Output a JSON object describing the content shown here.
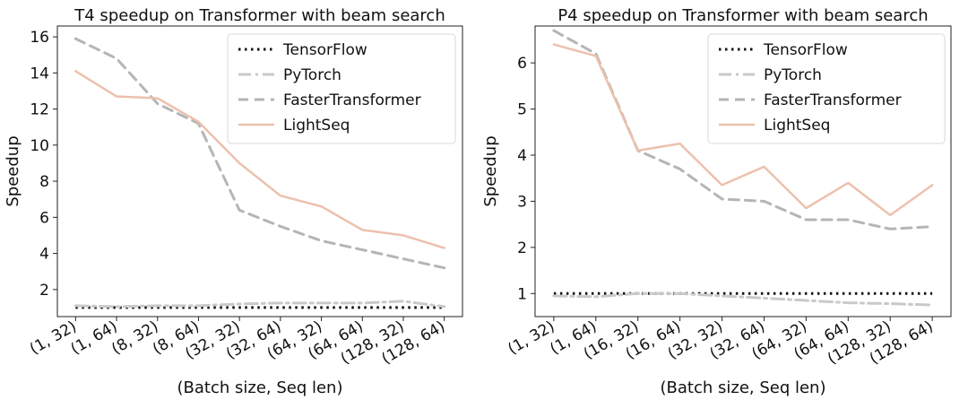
{
  "chart_data": [
    {
      "type": "line",
      "title": "T4 speedup on Transformer with beam search",
      "xlabel": "(Batch size, Seq len)",
      "ylabel": "Speedup",
      "categories": [
        "(1, 32)",
        "(1, 64)",
        "(8, 32)",
        "(8, 64)",
        "(32, 32)",
        "(32, 64)",
        "(64, 32)",
        "(64, 64)",
        "(128, 32)",
        "(128, 64)"
      ],
      "yticks": [
        "2",
        "4",
        "6",
        "8",
        "10",
        "12",
        "14",
        "16"
      ],
      "ylim": [
        0.5,
        16.6
      ],
      "legend_position": "top-right",
      "series": [
        {
          "name": "TensorFlow",
          "style": "dotted",
          "color": "#111111",
          "values": [
            1.0,
            1.0,
            1.0,
            1.0,
            1.0,
            1.0,
            1.0,
            1.0,
            1.0,
            1.0
          ]
        },
        {
          "name": "PyTorch",
          "style": "dashdot",
          "color": "#c9c9c9",
          "values": [
            1.1,
            1.05,
            1.1,
            1.1,
            1.2,
            1.25,
            1.25,
            1.25,
            1.35,
            1.05
          ]
        },
        {
          "name": "FasterTransformer",
          "style": "dashed",
          "color": "#b5b5b5",
          "values": [
            15.9,
            14.8,
            12.3,
            11.2,
            6.4,
            5.5,
            4.7,
            4.2,
            3.7,
            3.2
          ]
        },
        {
          "name": "LightSeq",
          "style": "solid",
          "color": "#ecc1ad",
          "values": [
            14.1,
            12.7,
            12.6,
            11.3,
            9.0,
            7.2,
            6.6,
            5.3,
            5.0,
            4.3
          ]
        }
      ]
    },
    {
      "type": "line",
      "title": "P4 speedup on Transformer with beam search",
      "xlabel": "(Batch size, Seq len)",
      "ylabel": "Speedup",
      "categories": [
        "(1, 32)",
        "(1, 64)",
        "(16, 32)",
        "(16, 64)",
        "(32, 32)",
        "(32, 64)",
        "(64, 32)",
        "(64, 64)",
        "(128, 32)",
        "(128, 64)"
      ],
      "yticks": [
        "1",
        "2",
        "3",
        "4",
        "5",
        "6"
      ],
      "ylim": [
        0.5,
        6.8
      ],
      "legend_position": "top-right",
      "series": [
        {
          "name": "TensorFlow",
          "style": "dotted",
          "color": "#111111",
          "values": [
            1.0,
            1.0,
            1.0,
            1.0,
            1.0,
            1.0,
            1.0,
            1.0,
            1.0,
            1.0
          ]
        },
        {
          "name": "PyTorch",
          "style": "dashdot",
          "color": "#c9c9c9",
          "values": [
            0.95,
            0.93,
            1.0,
            1.0,
            0.95,
            0.9,
            0.85,
            0.8,
            0.78,
            0.75
          ]
        },
        {
          "name": "FasterTransformer",
          "style": "dashed",
          "color": "#b5b5b5",
          "values": [
            6.7,
            6.2,
            4.1,
            3.7,
            3.05,
            3.0,
            2.6,
            2.6,
            2.4,
            2.45
          ]
        },
        {
          "name": "LightSeq",
          "style": "solid",
          "color": "#ecc1ad",
          "values": [
            6.4,
            6.15,
            4.1,
            4.25,
            3.35,
            3.75,
            2.85,
            3.4,
            2.7,
            3.35
          ]
        }
      ]
    }
  ]
}
